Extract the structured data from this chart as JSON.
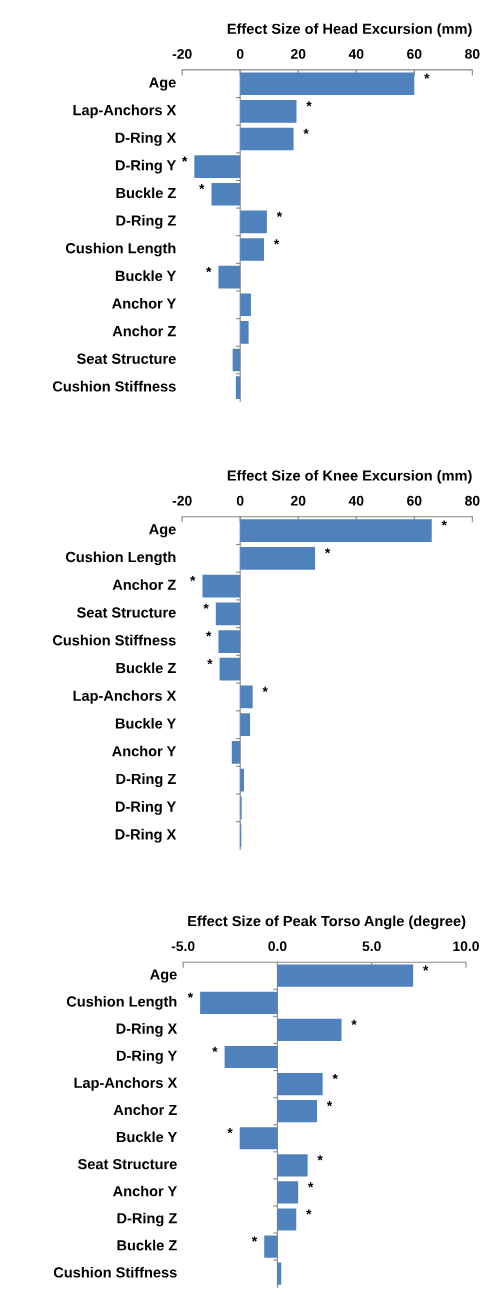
{
  "chart_data": [
    {
      "type": "bar",
      "orientation": "horizontal",
      "title": "Effect Size of Head Excursion (mm)",
      "categories": [
        "Age",
        "Lap-Anchors X",
        "D-Ring X",
        "D-Ring Y",
        "Buckle Z",
        "D-Ring Z",
        "Cushion Length",
        "Buckle Y",
        "Anchor Y",
        "Anchor Z",
        "Seat Structure",
        "Cushion Stiffness"
      ],
      "values": [
        60,
        19.4,
        18.4,
        -15.8,
        -9.9,
        9.2,
        8.2,
        -7.5,
        3.7,
        2.9,
        -2.6,
        -1.5
      ],
      "color": "#4f81bd",
      "xlim": [
        -20,
        80
      ],
      "xticks": [
        -20,
        0,
        20,
        40,
        60,
        80
      ],
      "annotations": [
        {
          "text": "*",
          "x": 60,
          "y": "Age"
        },
        {
          "text": "*",
          "x": 19.4,
          "y": "Lap-Anchors X"
        },
        {
          "text": "*",
          "x": 18.4,
          "y": "D-Ring X"
        },
        {
          "text": "*",
          "x": -15.8,
          "y": "D-Ring Y"
        },
        {
          "text": "*",
          "x": -9.9,
          "y": "Buckle Z"
        },
        {
          "text": "*",
          "x": 9.2,
          "y": "D-Ring Z"
        },
        {
          "text": "*",
          "x": 8.2,
          "y": "Cushion Length"
        },
        {
          "text": "*",
          "x": -7.5,
          "y": "Buckle Y"
        }
      ]
    },
    {
      "type": "bar",
      "orientation": "horizontal",
      "title": "Effect Size of Knee Excursion (mm)",
      "categories": [
        "Age",
        "Cushion Length",
        "Anchor Z",
        "Seat Structure",
        "Cushion Stiffness",
        "Buckle Z",
        "Lap-Anchors X",
        "Buckle Y",
        "Anchor Y",
        "D-Ring Z",
        "D-Ring Y",
        "D-Ring X"
      ],
      "values": [
        66,
        25.8,
        -13,
        -8.4,
        -7.5,
        -7.1,
        4.3,
        3.4,
        -2.9,
        1.3,
        0.5,
        0.4
      ],
      "color": "#4f81bd",
      "xlim": [
        -20,
        80
      ],
      "xticks": [
        -20,
        0,
        20,
        40,
        60,
        80
      ],
      "annotations": [
        {
          "text": "*",
          "x": 66,
          "y": "Age"
        },
        {
          "text": "*",
          "x": 25.8,
          "y": "Cushion Length"
        },
        {
          "text": "*",
          "x": -13,
          "y": "Anchor Z"
        },
        {
          "text": "*",
          "x": -8.4,
          "y": "Seat Structure"
        },
        {
          "text": "*",
          "x": -7.5,
          "y": "Cushion Stiffness"
        },
        {
          "text": "*",
          "x": -7.1,
          "y": "Buckle Z"
        },
        {
          "text": "*",
          "x": 4.3,
          "y": "Lap-Anchors X"
        }
      ]
    },
    {
      "type": "bar",
      "orientation": "horizontal",
      "title": "Effect Size of Peak Torso Angle (degree)",
      "categories": [
        "Age",
        "Cushion Length",
        "D-Ring X",
        "D-Ring Y",
        "Lap-Anchors X",
        "Anchor Z",
        "Buckle Y",
        "Seat Structure",
        "Anchor Y",
        "D-Ring Z",
        "Buckle Z",
        "Cushion Stiffness"
      ],
      "values": [
        7.2,
        -4.1,
        3.4,
        -2.8,
        2.4,
        2.1,
        -2.0,
        1.6,
        1.1,
        1.0,
        -0.7,
        0.2
      ],
      "color": "#4f81bd",
      "xlim": [
        -5,
        10
      ],
      "xticks": [
        {
          "value": -5,
          "label": "-5.0"
        },
        {
          "value": 0,
          "label": "0.0"
        },
        {
          "value": 5,
          "label": "5.0"
        },
        {
          "value": 10,
          "label": "10.0"
        }
      ],
      "annotations": [
        {
          "text": "*",
          "x": 7.2,
          "y": "Age"
        },
        {
          "text": "*",
          "x": -4.1,
          "y": "Cushion Length"
        },
        {
          "text": "*",
          "x": 3.4,
          "y": "D-Ring X"
        },
        {
          "text": "*",
          "x": -2.8,
          "y": "D-Ring Y"
        },
        {
          "text": "*",
          "x": 2.4,
          "y": "Lap-Anchors X"
        },
        {
          "text": "*",
          "x": 2.1,
          "y": "Anchor Z"
        },
        {
          "text": "*",
          "x": -2.0,
          "y": "Buckle Y"
        },
        {
          "text": "*",
          "x": 1.6,
          "y": "Seat Structure"
        },
        {
          "text": "*",
          "x": 1.1,
          "y": "Anchor Y"
        },
        {
          "text": "*",
          "x": 1.0,
          "y": "D-Ring Z"
        },
        {
          "text": "*",
          "x": -0.7,
          "y": "Buckle Z"
        }
      ]
    }
  ]
}
